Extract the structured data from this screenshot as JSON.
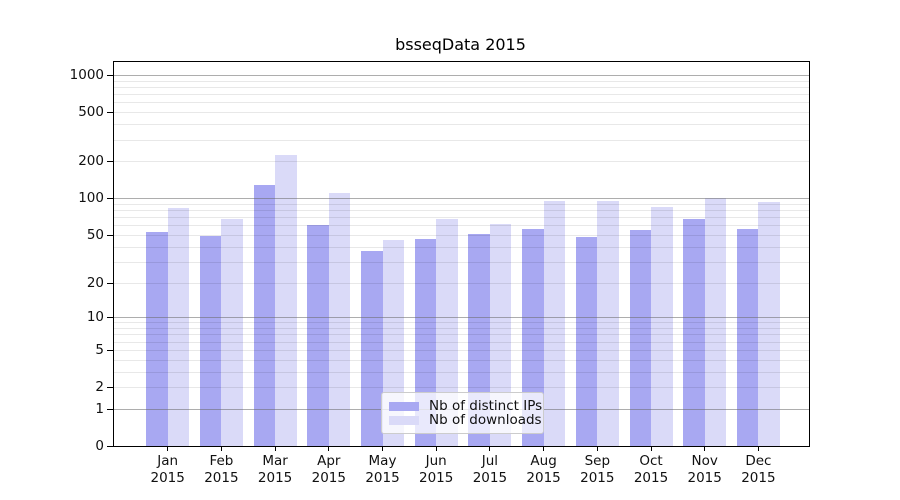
{
  "title": "bsseqData 2015",
  "chart_data": {
    "type": "bar",
    "title": "bsseqData 2015",
    "categories": [
      "Jan",
      "Feb",
      "Mar",
      "Apr",
      "May",
      "Jun",
      "Jul",
      "Aug",
      "Sep",
      "Oct",
      "Nov",
      "Dec"
    ],
    "x_tick_year": "2015",
    "series": [
      {
        "name": "Nb of distinct IPs",
        "color": "#a8a8f2",
        "values": [
          53,
          49,
          129,
          60,
          37,
          46,
          51,
          56,
          48,
          55,
          67,
          56
        ]
      },
      {
        "name": "Nb of downloads",
        "color": "#dadaf8",
        "values": [
          83,
          67,
          223,
          110,
          45,
          67,
          62,
          95,
          95,
          85,
          101,
          93
        ]
      }
    ],
    "yscale": "log1p",
    "yticks": [
      0,
      1,
      2,
      5,
      10,
      20,
      50,
      100,
      200,
      500,
      1000
    ],
    "ylim": [
      0,
      1290
    ],
    "xlabel": "",
    "ylabel": "",
    "grid": "horizontal log minor + decade lines",
    "grid_minor_color": "#e8e8e8",
    "grid_major_color": "#b0b0b0",
    "axis_color": "#000000",
    "legend_position": "inside-bottom-center"
  }
}
